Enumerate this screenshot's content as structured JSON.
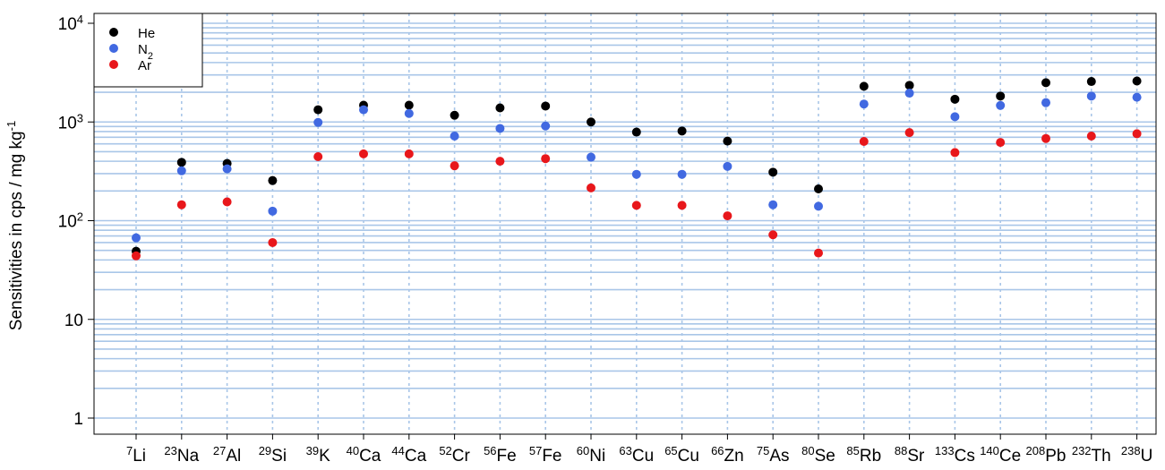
{
  "chart_data": {
    "type": "scatter",
    "ylabel": "Sensitivities in cps / mg kg",
    "ylabel_unit_superscript": "-1",
    "y_scale": "log",
    "ylim": [
      1,
      10000
    ],
    "y_ticks": [
      {
        "value": 1,
        "label": "1",
        "sup": ""
      },
      {
        "value": 10,
        "label": "10",
        "sup": ""
      },
      {
        "value": 100,
        "label": "10",
        "sup": "2"
      },
      {
        "value": 1000,
        "label": "10",
        "sup": "3"
      },
      {
        "value": 10000,
        "label": "10",
        "sup": "4"
      }
    ],
    "grid": true,
    "legend_position": "top-left",
    "categories": [
      {
        "mass": "7",
        "element": "Li"
      },
      {
        "mass": "23",
        "element": "Na"
      },
      {
        "mass": "27",
        "element": "Al"
      },
      {
        "mass": "29",
        "element": "Si"
      },
      {
        "mass": "39",
        "element": "K"
      },
      {
        "mass": "40",
        "element": "Ca"
      },
      {
        "mass": "44",
        "element": "Ca"
      },
      {
        "mass": "52",
        "element": "Cr"
      },
      {
        "mass": "56",
        "element": "Fe"
      },
      {
        "mass": "57",
        "element": "Fe"
      },
      {
        "mass": "60",
        "element": "Ni"
      },
      {
        "mass": "63",
        "element": "Cu"
      },
      {
        "mass": "65",
        "element": "Cu"
      },
      {
        "mass": "66",
        "element": "Zn"
      },
      {
        "mass": "75",
        "element": "As"
      },
      {
        "mass": "80",
        "element": "Se"
      },
      {
        "mass": "85",
        "element": "Rb"
      },
      {
        "mass": "88",
        "element": "Sr"
      },
      {
        "mass": "133",
        "element": "Cs"
      },
      {
        "mass": "140",
        "element": "Ce"
      },
      {
        "mass": "208",
        "element": "Pb"
      },
      {
        "mass": "232",
        "element": "Th"
      },
      {
        "mass": "238",
        "element": "U"
      }
    ],
    "series": [
      {
        "name": "He",
        "name_sub": "",
        "color": "#000000",
        "values": [
          49,
          390,
          380,
          255,
          1330,
          1480,
          1480,
          1170,
          1390,
          1450,
          1000,
          790,
          810,
          640,
          310,
          210,
          2300,
          2350,
          1700,
          1830,
          2500,
          2570,
          2600
        ]
      },
      {
        "name": "N",
        "name_sub": "2",
        "color": "#4169e1",
        "values": [
          67,
          320,
          335,
          125,
          990,
          1330,
          1220,
          720,
          860,
          910,
          440,
          295,
          295,
          355,
          145,
          140,
          1520,
          1960,
          1130,
          1470,
          1570,
          1830,
          1780
        ]
      },
      {
        "name": "Ar",
        "name_sub": "",
        "color": "#e8171b",
        "values": [
          44,
          145,
          155,
          60,
          445,
          475,
          475,
          360,
          400,
          425,
          215,
          143,
          143,
          112,
          72,
          47,
          635,
          780,
          490,
          620,
          680,
          720,
          760
        ]
      }
    ]
  }
}
